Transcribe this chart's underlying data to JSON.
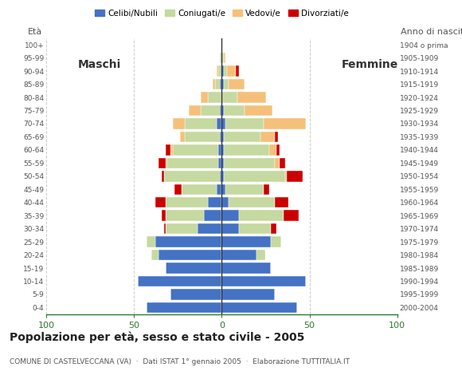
{
  "age_groups": [
    "0-4",
    "5-9",
    "10-14",
    "15-19",
    "20-24",
    "25-29",
    "30-34",
    "35-39",
    "40-44",
    "45-49",
    "50-54",
    "55-59",
    "60-64",
    "65-69",
    "70-74",
    "75-79",
    "80-84",
    "85-89",
    "90-94",
    "95-99",
    "100+"
  ],
  "birth_years": [
    "2000-2004",
    "1995-1999",
    "1990-1994",
    "1985-1989",
    "1980-1984",
    "1975-1979",
    "1970-1974",
    "1965-1969",
    "1960-1964",
    "1955-1959",
    "1950-1954",
    "1945-1949",
    "1940-1944",
    "1935-1939",
    "1930-1934",
    "1925-1929",
    "1920-1924",
    "1915-1919",
    "1910-1914",
    "1905-1909",
    "1904 o prima"
  ],
  "male": {
    "celibi": [
      43,
      29,
      48,
      32,
      36,
      38,
      14,
      10,
      8,
      3,
      1,
      2,
      2,
      1,
      3,
      1,
      0,
      1,
      0,
      0,
      0
    ],
    "coniugati": [
      0,
      0,
      0,
      0,
      4,
      5,
      18,
      22,
      24,
      20,
      32,
      29,
      26,
      20,
      18,
      11,
      8,
      3,
      2,
      1,
      0
    ],
    "vedovi": [
      0,
      0,
      0,
      0,
      0,
      0,
      0,
      0,
      0,
      0,
      0,
      1,
      1,
      3,
      7,
      7,
      4,
      1,
      1,
      0,
      0
    ],
    "divorziati": [
      0,
      0,
      0,
      0,
      0,
      0,
      1,
      2,
      6,
      4,
      1,
      4,
      3,
      0,
      0,
      0,
      0,
      0,
      0,
      0,
      0
    ]
  },
  "female": {
    "nubili": [
      43,
      30,
      48,
      28,
      20,
      28,
      10,
      10,
      4,
      2,
      1,
      1,
      1,
      1,
      2,
      1,
      0,
      1,
      1,
      0,
      0
    ],
    "coniugate": [
      0,
      0,
      0,
      0,
      5,
      6,
      18,
      25,
      26,
      22,
      35,
      29,
      26,
      21,
      22,
      12,
      9,
      3,
      2,
      1,
      0
    ],
    "vedove": [
      0,
      0,
      0,
      0,
      0,
      0,
      0,
      0,
      0,
      0,
      1,
      3,
      4,
      8,
      24,
      16,
      16,
      9,
      5,
      1,
      0
    ],
    "divorziate": [
      0,
      0,
      0,
      0,
      0,
      0,
      3,
      9,
      8,
      3,
      9,
      3,
      2,
      2,
      0,
      0,
      0,
      0,
      2,
      0,
      0
    ]
  },
  "colors": {
    "celibi": "#4472c4",
    "coniugati": "#c5d9a0",
    "vedovi": "#f5c07a",
    "divorziati": "#cc0000"
  },
  "title": "Popolazione per età, sesso e stato civile - 2005",
  "subtitle": "COMUNE DI CASTELVECCANA (VA)  ·  Dati ISTAT 1° gennaio 2005  ·  Elaborazione TUTTITALIA.IT",
  "label_age": "Età",
  "label_birth": "Anno di nascita",
  "xlim": 100,
  "bg_color": "#ffffff",
  "grid_color": "#cccccc",
  "axis_color": "#2d7a2d",
  "label_male": "Maschi",
  "label_female": "Femmine",
  "legend_labels": [
    "Celibi/Nubili",
    "Coniugati/e",
    "Vedovi/e",
    "Divorziati/e"
  ]
}
